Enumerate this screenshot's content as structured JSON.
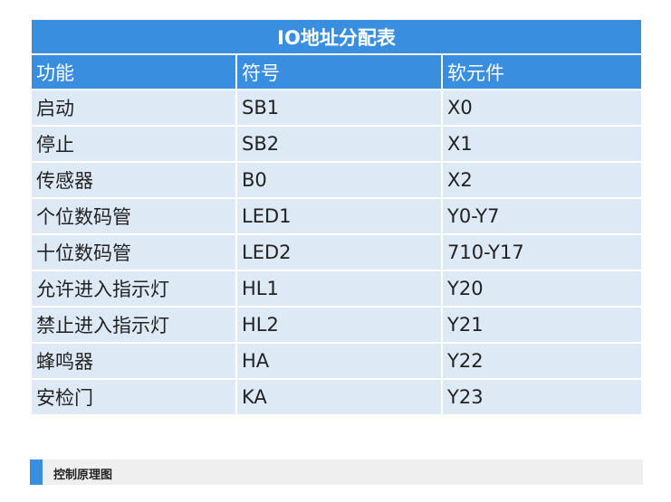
{
  "table": {
    "title": "IO地址分配表",
    "headers": [
      "功能",
      "符号",
      "软元件"
    ],
    "rows": [
      [
        "启动",
        "SB1",
        "X0"
      ],
      [
        "停止",
        "SB2",
        "X1"
      ],
      [
        "传感器",
        "B0",
        "X2"
      ],
      [
        "个位数码管",
        "LED1",
        "Y0-Y7"
      ],
      [
        "十位数码管",
        "LED2",
        "710-Y17"
      ],
      [
        "允许进入指示灯",
        "HL1",
        "Y20"
      ],
      [
        "禁止进入指示灯",
        "HL2",
        "Y21"
      ],
      [
        "蜂鸣器",
        "HA",
        "Y22"
      ],
      [
        "安检门",
        "KA",
        "Y23"
      ]
    ]
  },
  "section": {
    "title": "控制原理图"
  },
  "colors": {
    "accent": "#3a8ee0",
    "row_bg": "#dde9f5",
    "section_bg": "#efefef"
  }
}
